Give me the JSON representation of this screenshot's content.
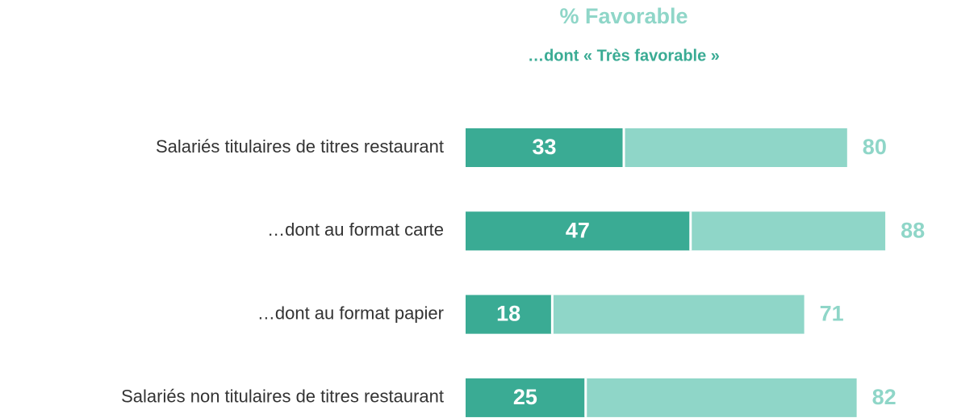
{
  "chart_data": {
    "type": "overlap-bar",
    "categories": [
      "Salariés titulaires de titres restaurant",
      "…dont au format carte",
      "…dont au format papier",
      "Salariés non titulaires de titres restaurant"
    ],
    "series": [
      {
        "name": "% Favorable",
        "color": "#8fd6c8",
        "values": [
          80,
          88,
          71,
          82
        ]
      },
      {
        "name": "…dont « Très favorable »",
        "color": "#3aab94",
        "values": [
          33,
          47,
          18,
          25
        ]
      }
    ],
    "xlim": [
      0,
      100
    ]
  }
}
